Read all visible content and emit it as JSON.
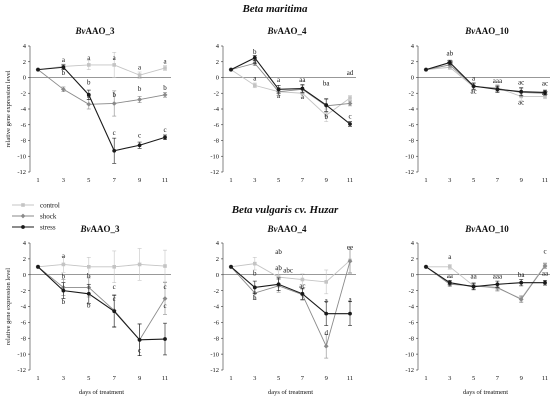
{
  "section_titles": [
    "Beta maritima",
    "Beta vulgaris cv. Huzar"
  ],
  "legend": [
    {
      "name": "control",
      "color": "#c4c4c4",
      "marker": "square"
    },
    {
      "name": "shock",
      "color": "#8a8a8a",
      "marker": "diamond"
    },
    {
      "name": "stress",
      "color": "#1a1a1a",
      "marker": "circle"
    }
  ],
  "ylabel": "relative gene expression level",
  "xlabel": "days of treatment",
  "chart_data": [
    {
      "type": "line",
      "section": "Beta maritima",
      "title_prefix": "Bv",
      "title_suffix": "AAO_3",
      "x": [
        1,
        3,
        5,
        7,
        9,
        11
      ],
      "ylim": [
        -12,
        4
      ],
      "yticks": [
        -12,
        -10,
        -8,
        -6,
        -4,
        -2,
        0,
        2,
        4
      ],
      "series": [
        {
          "name": "control",
          "values": [
            1,
            1.4,
            1.6,
            1.6,
            0.3,
            1.2
          ]
        },
        {
          "name": "shock",
          "values": [
            1,
            -1.5,
            -3.4,
            -3.3,
            -2.8,
            -2.2
          ]
        },
        {
          "name": "stress",
          "values": [
            1,
            1.3,
            -2.2,
            -9.3,
            -8.6,
            -7.6
          ]
        }
      ],
      "error": [
        0,
        0.3,
        0.6,
        1.6,
        0.4,
        0.3
      ],
      "sig_labels": [
        {
          "x": 3,
          "y": 2.0,
          "text": "a"
        },
        {
          "x": 3,
          "y": 0.3,
          "text": "b"
        },
        {
          "x": 5,
          "y": 2.2,
          "text": "a"
        },
        {
          "x": 5,
          "y": -0.9,
          "text": "b"
        },
        {
          "x": 5,
          "y": -2.6,
          "text": "b"
        },
        {
          "x": 7,
          "y": 2.2,
          "text": "a"
        },
        {
          "x": 7,
          "y": -2.5,
          "text": "b"
        },
        {
          "x": 7,
          "y": -7.3,
          "text": "c"
        },
        {
          "x": 9,
          "y": 1.0,
          "text": "a"
        },
        {
          "x": 9,
          "y": -1.7,
          "text": "b"
        },
        {
          "x": 9,
          "y": -7.6,
          "text": "c"
        },
        {
          "x": 11,
          "y": 1.8,
          "text": "a"
        },
        {
          "x": 11,
          "y": -1.6,
          "text": "b"
        },
        {
          "x": 11,
          "y": -6.9,
          "text": "c"
        }
      ]
    },
    {
      "type": "line",
      "section": "Beta maritima",
      "title_prefix": "Bv",
      "title_suffix": "AAO_4",
      "x": [
        1,
        3,
        5,
        7,
        9,
        11
      ],
      "ylim": [
        -12,
        4
      ],
      "yticks": [
        -12,
        -10,
        -8,
        -6,
        -4,
        -2,
        0,
        2,
        4
      ],
      "series": [
        {
          "name": "control",
          "values": [
            1,
            -1.0,
            -1.8,
            -2.0,
            -4.8,
            -2.6
          ]
        },
        {
          "name": "shock",
          "values": [
            1,
            1.8,
            -1.8,
            -1.5,
            -3.6,
            -3.3
          ]
        },
        {
          "name": "stress",
          "values": [
            1,
            2.5,
            -1.5,
            -1.4,
            -3.5,
            -5.9
          ]
        }
      ],
      "error": [
        0,
        0.3,
        0.5,
        0.5,
        0.8,
        0.3
      ],
      "sig_labels": [
        {
          "x": 3,
          "y": 3.0,
          "text": "b"
        },
        {
          "x": 3,
          "y": 1.7,
          "text": "a"
        },
        {
          "x": 3,
          "y": -0.4,
          "text": "a"
        },
        {
          "x": 5,
          "y": -0.6,
          "text": "a"
        },
        {
          "x": 5,
          "y": -2.6,
          "text": "a"
        },
        {
          "x": 7,
          "y": -0.6,
          "text": "aa"
        },
        {
          "x": 7,
          "y": -2.7,
          "text": "a"
        },
        {
          "x": 9,
          "y": -1.0,
          "text": "ba"
        },
        {
          "x": 9,
          "y": -5.3,
          "text": "b"
        },
        {
          "x": 11,
          "y": 0.3,
          "text": "ad"
        },
        {
          "x": 11,
          "y": -5.2,
          "text": "c"
        }
      ]
    },
    {
      "type": "line",
      "section": "Beta maritima",
      "title_prefix": "Bv",
      "title_suffix": "AAO_10",
      "x": [
        1,
        3,
        5,
        7,
        9,
        11
      ],
      "ylim": [
        -12,
        4
      ],
      "yticks": [
        -12,
        -10,
        -8,
        -6,
        -4,
        -2,
        0,
        2,
        4
      ],
      "series": [
        {
          "name": "control",
          "values": [
            1,
            1.3,
            -1.2,
            -1.3,
            -2.4,
            -2.4
          ]
        },
        {
          "name": "shock",
          "values": [
            1,
            1.6,
            -1.1,
            -1.4,
            -1.9,
            -2.0
          ]
        },
        {
          "name": "stress",
          "values": [
            1,
            1.9,
            -1.1,
            -1.5,
            -1.8,
            -1.9
          ]
        }
      ],
      "error": [
        0,
        0.3,
        0.4,
        0.4,
        0.5,
        0.3
      ],
      "sig_labels": [
        {
          "x": 3,
          "y": 2.8,
          "text": "ab"
        },
        {
          "x": 3,
          "y": 1.8,
          "text": "aa"
        },
        {
          "x": 5,
          "y": -0.4,
          "text": "a"
        },
        {
          "x": 5,
          "y": -2.0,
          "text": "ac"
        },
        {
          "x": 7,
          "y": -0.7,
          "text": "aaa"
        },
        {
          "x": 9,
          "y": -0.9,
          "text": "ac"
        },
        {
          "x": 9,
          "y": -3.4,
          "text": "ac"
        },
        {
          "x": 11,
          "y": -1.0,
          "text": "ac"
        },
        {
          "x": 11,
          "y": -2.2,
          "text": "ac"
        }
      ]
    },
    {
      "type": "line",
      "section": "Beta vulgaris cv. Huzar",
      "title_prefix": "Bv",
      "title_suffix": "AAO_3",
      "x": [
        1,
        3,
        5,
        7,
        9,
        11
      ],
      "ylim": [
        -12,
        4
      ],
      "yticks": [
        -12,
        -10,
        -8,
        -6,
        -4,
        -2,
        0,
        2,
        4
      ],
      "series": [
        {
          "name": "control",
          "values": [
            1,
            1.3,
            1.0,
            1.0,
            1.3,
            1.1
          ]
        },
        {
          "name": "shock",
          "values": [
            1,
            -1.6,
            -1.6,
            -4.5,
            -8.2,
            -3.0
          ]
        },
        {
          "name": "stress",
          "values": [
            1,
            -2.0,
            -2.4,
            -4.6,
            -8.2,
            -8.1
          ]
        }
      ],
      "error": [
        0,
        1.0,
        1.2,
        2.0,
        2.0,
        2.0
      ],
      "sig_labels": [
        {
          "x": 3,
          "y": 2.1,
          "text": "a"
        },
        {
          "x": 3,
          "y": -0.5,
          "text": "b"
        },
        {
          "x": 3,
          "y": -3.7,
          "text": "b"
        },
        {
          "x": 5,
          "y": -0.4,
          "text": "b"
        },
        {
          "x": 5,
          "y": -4.1,
          "text": "b"
        },
        {
          "x": 7,
          "y": -1.8,
          "text": "c"
        },
        {
          "x": 7,
          "y": -3.3,
          "text": "c"
        },
        {
          "x": 9,
          "y": -9.8,
          "text": "c"
        },
        {
          "x": 11,
          "y": -1.8,
          "text": "c"
        },
        {
          "x": 11,
          "y": -4.2,
          "text": "c"
        }
      ]
    },
    {
      "type": "line",
      "section": "Beta vulgaris cv. Huzar",
      "title_prefix": "Bv",
      "title_suffix": "AAO_4",
      "x": [
        1,
        3,
        5,
        7,
        9,
        11
      ],
      "ylim": [
        -12,
        4
      ],
      "yticks": [
        -12,
        -10,
        -8,
        -6,
        -4,
        -2,
        0,
        2,
        4
      ],
      "series": [
        {
          "name": "control",
          "values": [
            1,
            1.4,
            -0.3,
            -0.6,
            -0.9,
            1.8
          ]
        },
        {
          "name": "shock",
          "values": [
            1,
            -2.3,
            -1.4,
            -2.5,
            -9.0,
            1.7
          ]
        },
        {
          "name": "stress",
          "values": [
            1,
            -1.6,
            -1.2,
            -2.4,
            -4.9,
            -4.9
          ]
        }
      ],
      "error": [
        0,
        0.8,
        0.8,
        0.7,
        1.5,
        1.5
      ],
      "sig_labels": [
        {
          "x": 5,
          "y": 2.6,
          "text": "ab"
        },
        {
          "x": 5,
          "y": 0.6,
          "text": "ab"
        },
        {
          "x": 3,
          "y": -0.1,
          "text": "b"
        },
        {
          "x": 3,
          "y": -3.2,
          "text": "b"
        },
        {
          "x": 5.8,
          "y": 0.3,
          "text": "abc"
        },
        {
          "x": 7,
          "y": -1.7,
          "text": "ac"
        },
        {
          "x": 9,
          "y": -3.5,
          "text": "a"
        },
        {
          "x": 9,
          "y": -7.6,
          "text": "d"
        },
        {
          "x": 11,
          "y": 3.2,
          "text": "ee"
        },
        {
          "x": 11,
          "y": -3.4,
          "text": "a"
        }
      ]
    },
    {
      "type": "line",
      "section": "Beta vulgaris cv. Huzar",
      "title_prefix": "Bv",
      "title_suffix": "AAO_10",
      "x": [
        1,
        3,
        5,
        7,
        9,
        11
      ],
      "ylim": [
        -12,
        4
      ],
      "yticks": [
        -12,
        -10,
        -8,
        -6,
        -4,
        -2,
        0,
        2,
        4
      ],
      "series": [
        {
          "name": "control",
          "values": [
            1,
            1.0,
            -1.4,
            -1.7,
            -3.0,
            1.2
          ]
        },
        {
          "name": "shock",
          "values": [
            1,
            -1.2,
            -1.4,
            -1.6,
            -3.1,
            1.1
          ]
        },
        {
          "name": "stress",
          "values": [
            1,
            -1.0,
            -1.5,
            -1.2,
            -1.0,
            -1.0
          ]
        }
      ],
      "error": [
        0,
        0.3,
        0.4,
        0.4,
        0.4,
        0.3
      ],
      "sig_labels": [
        {
          "x": 3,
          "y": 2.0,
          "text": "a"
        },
        {
          "x": 3,
          "y": -0.4,
          "text": "aa"
        },
        {
          "x": 5,
          "y": -0.5,
          "text": "aa"
        },
        {
          "x": 7,
          "y": -0.5,
          "text": "aaa"
        },
        {
          "x": 9,
          "y": -0.3,
          "text": "ba"
        },
        {
          "x": 11,
          "y": 2.7,
          "text": "c"
        },
        {
          "x": 11,
          "y": -0.1,
          "text": "aa"
        }
      ]
    }
  ]
}
